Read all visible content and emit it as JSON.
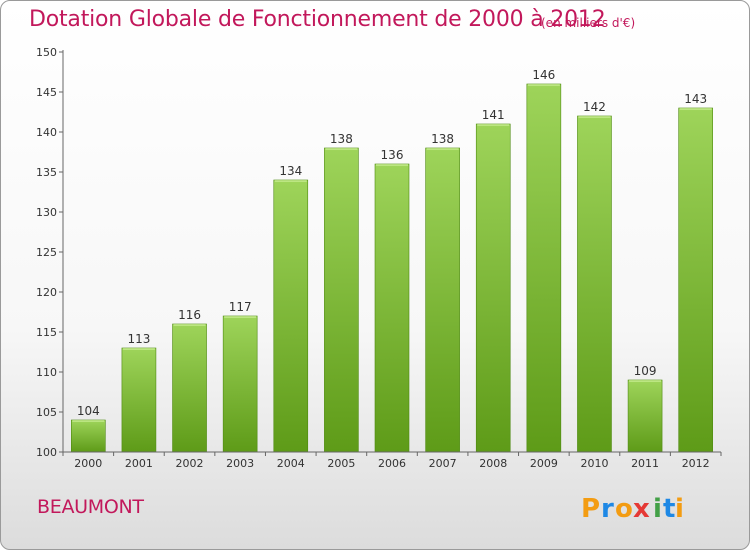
{
  "title": "Dotation Globale de Fonctionnement de 2000 à 2012",
  "subtitle": "(en milliers d'€)",
  "commune": "BEAUMONT",
  "logo": {
    "letters": [
      "P",
      "r",
      "o",
      "x",
      "i",
      "t",
      "i"
    ]
  },
  "colors": {
    "title": "#c2185b",
    "bar_top": "#9ed45a",
    "bar_bottom": "#5e9b18"
  },
  "chart_data": {
    "type": "bar",
    "categories": [
      "2000",
      "2001",
      "2002",
      "2003",
      "2004",
      "2005",
      "2006",
      "2007",
      "2008",
      "2009",
      "2010",
      "2011",
      "2012"
    ],
    "values": [
      104,
      113,
      116,
      117,
      134,
      138,
      136,
      138,
      141,
      146,
      142,
      109,
      143
    ],
    "ylim": [
      100,
      150
    ],
    "yticks": [
      100,
      105,
      110,
      115,
      120,
      125,
      130,
      135,
      140,
      145,
      150
    ],
    "grid": false,
    "data_labels": true
  }
}
